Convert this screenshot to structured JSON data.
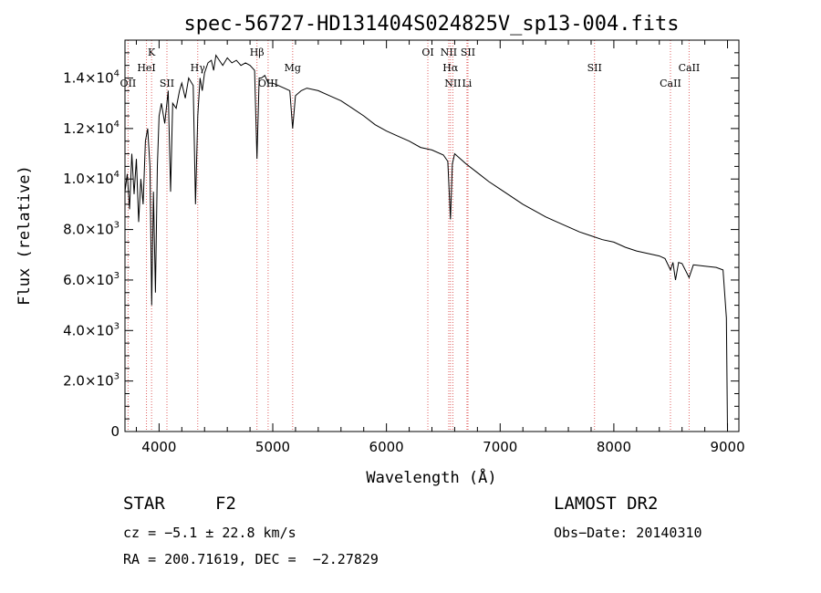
{
  "chart_data": {
    "type": "line",
    "title": "spec-56727-HD131404S024825V_sp13-004.fits",
    "xlabel": "Wavelength (Å)",
    "ylabel": "Flux (relative)",
    "xlim": [
      3700,
      9100
    ],
    "ylim": [
      0,
      15500
    ],
    "x_ticks": [
      "4000",
      "5000",
      "6000",
      "7000",
      "8000",
      "9000"
    ],
    "x_tick_values": [
      4000,
      5000,
      6000,
      7000,
      8000,
      9000
    ],
    "y_ticks": [
      {
        "value": 0,
        "mantissa": "0",
        "exp": ""
      },
      {
        "value": 2000,
        "mantissa": "2.0×10",
        "exp": "3"
      },
      {
        "value": 4000,
        "mantissa": "4.0×10",
        "exp": "3"
      },
      {
        "value": 6000,
        "mantissa": "6.0×10",
        "exp": "3"
      },
      {
        "value": 8000,
        "mantissa": "8.0×10",
        "exp": "3"
      },
      {
        "value": 10000,
        "mantissa": "1.0×10",
        "exp": "4"
      },
      {
        "value": 12000,
        "mantissa": "1.2×10",
        "exp": "4"
      },
      {
        "value": 14000,
        "mantissa": "1.4×10",
        "exp": "4"
      }
    ],
    "series": [
      {
        "x": [
          3700,
          3720,
          3740,
          3760,
          3780,
          3800,
          3820,
          3840,
          3860,
          3880,
          3900,
          3920,
          3935,
          3950,
          3968,
          3985,
          4000,
          4020,
          4050,
          4080,
          4101,
          4120,
          4150,
          4180,
          4200,
          4230,
          4260,
          4300,
          4320,
          4340,
          4360,
          4380,
          4400,
          4430,
          4460,
          4480,
          4500,
          4530,
          4560,
          4600,
          4640,
          4680,
          4720,
          4760,
          4800,
          4840,
          4861,
          4880,
          4900,
          4930,
          4960,
          5000,
          5050,
          5100,
          5150,
          5175,
          5200,
          5250,
          5300,
          5400,
          5500,
          5600,
          5700,
          5800,
          5900,
          6000,
          6100,
          6200,
          6300,
          6400,
          6500,
          6540,
          6563,
          6580,
          6600,
          6700,
          6800,
          6900,
          7000,
          7100,
          7200,
          7300,
          7400,
          7500,
          7600,
          7700,
          7800,
          7900,
          8000,
          8100,
          8200,
          8300,
          8400,
          8450,
          8498,
          8520,
          8542,
          8570,
          8600,
          8662,
          8700,
          8800,
          8900,
          8960,
          8990,
          9000
        ],
        "y": [
          9500,
          10200,
          8800,
          11000,
          9400,
          10800,
          8300,
          10000,
          9000,
          11500,
          12000,
          10500,
          5000,
          9500,
          5500,
          10500,
          12500,
          13000,
          12200,
          13500,
          9500,
          13000,
          12800,
          13500,
          13800,
          13200,
          14000,
          13700,
          9000,
          12500,
          14000,
          13500,
          14200,
          14600,
          14700,
          14300,
          14900,
          14700,
          14500,
          14800,
          14600,
          14700,
          14500,
          14600,
          14500,
          14300,
          10800,
          14000,
          14000,
          14100,
          13800,
          13800,
          13700,
          13600,
          13500,
          12000,
          13300,
          13500,
          13600,
          13500,
          13300,
          13100,
          12800,
          12500,
          12150,
          11900,
          11700,
          11500,
          11250,
          11150,
          10950,
          10700,
          8400,
          10600,
          11000,
          10600,
          10250,
          9900,
          9600,
          9300,
          9000,
          8750,
          8500,
          8300,
          8100,
          7900,
          7750,
          7600,
          7500,
          7300,
          7150,
          7050,
          6950,
          6850,
          6400,
          6700,
          6000,
          6700,
          6650,
          6100,
          6600,
          6550,
          6500,
          6400,
          4500,
          0
        ]
      }
    ],
    "spectral_lines": [
      {
        "label": "K",
        "x": 3934,
        "row": 1
      },
      {
        "label": "HeI",
        "x": 3889,
        "row": 2
      },
      {
        "label": "OII",
        "x": 3727,
        "row": 3
      },
      {
        "label": "SII",
        "x": 4069,
        "row": 3
      },
      {
        "label": "Hγ",
        "x": 4340,
        "row": 2
      },
      {
        "label": "Hβ",
        "x": 4861,
        "row": 1
      },
      {
        "label": "OIII",
        "x": 4959,
        "row": 3
      },
      {
        "label": "Mg",
        "x": 5175,
        "row": 2
      },
      {
        "label": "OI",
        "x": 6364,
        "row": 1
      },
      {
        "label": "NII",
        "x": 6548,
        "row": 1
      },
      {
        "label": "Hα",
        "x": 6563,
        "row": 2
      },
      {
        "label": "NII",
        "x": 6584,
        "row": 3
      },
      {
        "label": "SII",
        "x": 6717,
        "row": 1
      },
      {
        "label": "Li",
        "x": 6708,
        "row": 3
      },
      {
        "label": "SII",
        "x": 7830,
        "row": 2
      },
      {
        "label": "CaII",
        "x": 8662,
        "row": 2
      },
      {
        "label": "CaII",
        "x": 8498,
        "row": 3
      }
    ],
    "line_color": "#000000",
    "marker_color": "#e06060",
    "grid": false
  },
  "info": {
    "object_class": "STAR",
    "subclass": "F2",
    "survey": "LAMOST DR2",
    "velocity": "cz = −5.1 ± 22.8 km/s",
    "obs_date": "Obs−Date: 20140310",
    "coords": "RA = 200.71619, DEC =  −2.27829"
  }
}
